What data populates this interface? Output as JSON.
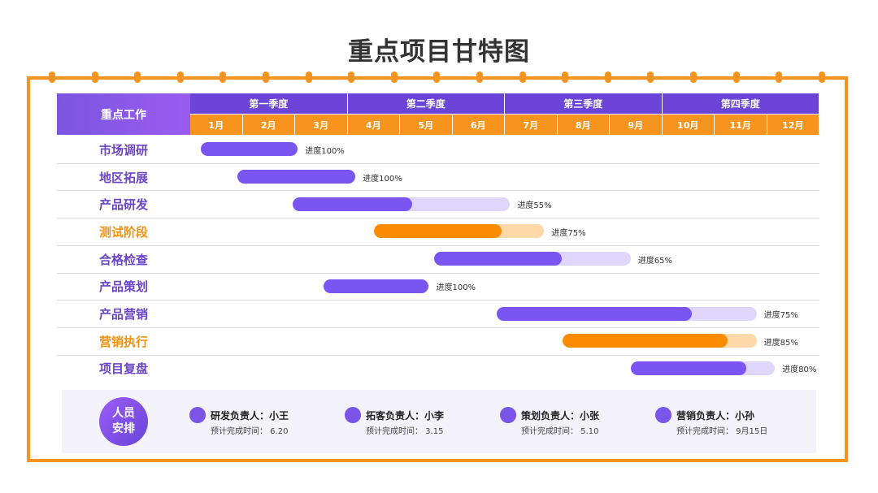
{
  "title": "重点项目甘特图",
  "colors": {
    "purple": "#7b55f2",
    "purple_light": "#ded6fb",
    "orange": "#fb8c00",
    "orange_light": "#fdd8a8",
    "orange_label": "#f39211",
    "purple_label": "#6a45c8"
  },
  "chart_data": {
    "type": "bar",
    "header_label": "重点工作",
    "quarters": [
      "第一季度",
      "第二季度",
      "第三季度",
      "第四季度"
    ],
    "months": [
      "1月",
      "2月",
      "3月",
      "4月",
      "5月",
      "6月",
      "7月",
      "8月",
      "9月",
      "10月",
      "11月",
      "12月"
    ],
    "tasks": [
      {
        "name": "市场调研",
        "start": 1.2,
        "end": 3.05,
        "progress": 100,
        "label": "进度100%",
        "color": "purple"
      },
      {
        "name": "地区拓展",
        "start": 1.9,
        "end": 4.15,
        "progress": 100,
        "label": "进度100%",
        "color": "purple"
      },
      {
        "name": "产品研发",
        "start": 2.95,
        "end": 7.1,
        "progress": 55,
        "label": "进度55%",
        "color": "purple"
      },
      {
        "name": "测试阶段",
        "start": 4.5,
        "end": 7.75,
        "progress": 75,
        "label": "进度75%",
        "color": "orange"
      },
      {
        "name": "合格检查",
        "start": 5.65,
        "end": 9.4,
        "progress": 65,
        "label": "进度65%",
        "color": "purple"
      },
      {
        "name": "产品策划",
        "start": 3.55,
        "end": 5.55,
        "progress": 100,
        "label": "进度100%",
        "color": "purple"
      },
      {
        "name": "产品营销",
        "start": 6.85,
        "end": 11.8,
        "progress": 75,
        "label": "进度75%",
        "color": "purple"
      },
      {
        "name": "营销执行",
        "start": 8.1,
        "end": 11.8,
        "progress": 85,
        "label": "进度85%",
        "color": "orange"
      },
      {
        "name": "项目复盘",
        "start": 9.4,
        "end": 12.15,
        "progress": 80,
        "label": "进度80%",
        "color": "purple"
      }
    ]
  },
  "staff": {
    "label_line1": "人员",
    "label_line2": "安排",
    "members": [
      {
        "name": "研发负责人：小王",
        "due": "预计完成时间：  6.20"
      },
      {
        "name": "拓客负责人：小李",
        "due": "预计完成时间：  3.15"
      },
      {
        "name": "策划负责人：小张",
        "due": "预计完成时间：  5.10"
      },
      {
        "name": "营销负责人：小孙",
        "due": "预计完成时间：  9月15日"
      }
    ]
  }
}
